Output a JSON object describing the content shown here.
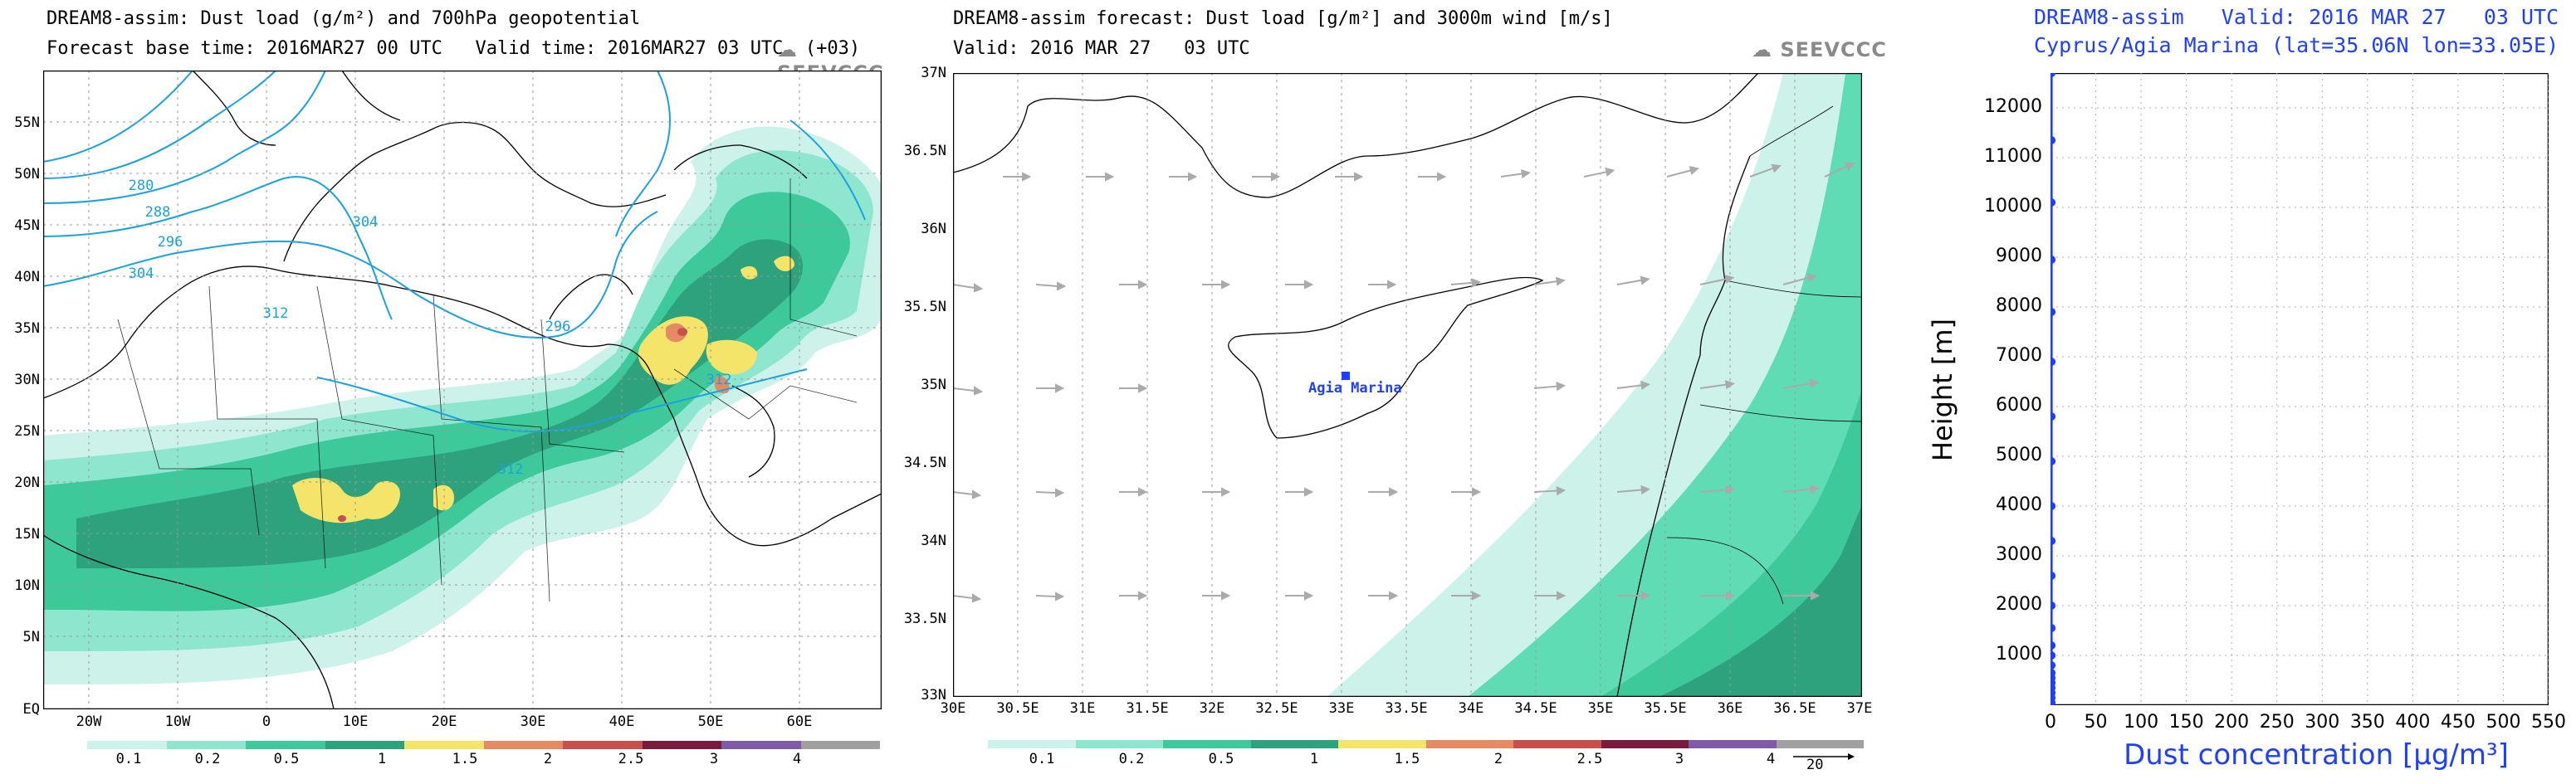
{
  "logo_text": "SEEVCCC",
  "colorbar": {
    "labels": [
      "0.1",
      "0.2",
      "0.5",
      "1",
      "1.5",
      "2",
      "2.5",
      "3",
      "4"
    ],
    "colors": [
      "#cdf2ea",
      "#8fe6cf",
      "#3ec99b",
      "#2ea27c",
      "#f5e46a",
      "#e58a63",
      "#c94e4e",
      "#7a1a3c",
      "#7f5aa8",
      "#a0a0a0"
    ]
  },
  "panel_left": {
    "title_line1": "DREAM8-assim: Dust load (g/m²) and 700hPa geopotential",
    "title_line2": "Forecast base time: 2016MAR27 00 UTC   Valid time: 2016MAR27 03 UTC  (+03)",
    "lat_labels": [
      "55N",
      "50N",
      "45N",
      "40N",
      "35N",
      "30N",
      "25N",
      "20N",
      "15N",
      "10N",
      "5N",
      "EQ"
    ],
    "lon_labels": [
      "20W",
      "10W",
      "0",
      "10E",
      "20E",
      "30E",
      "40E",
      "50E",
      "60E"
    ],
    "contour_labels": [
      "280",
      "288",
      "296",
      "304",
      "304",
      "312",
      "296",
      "312",
      "312"
    ]
  },
  "panel_middle": {
    "title_line1": "DREAM8-assim forecast: Dust load [g/m²] and 3000m wind [m/s]",
    "title_line2": "Valid: 2016 MAR 27   03 UTC",
    "lat_labels": [
      "37N",
      "36.5N",
      "36N",
      "35.5N",
      "35N",
      "34.5N",
      "34N",
      "33.5N",
      "33N"
    ],
    "lon_labels": [
      "30E",
      "30.5E",
      "31E",
      "31.5E",
      "32E",
      "32.5E",
      "33E",
      "33.5E",
      "34E",
      "34.5E",
      "35E",
      "35.5E",
      "36E",
      "36.5E",
      "37E"
    ],
    "station_label": "Agia Marina",
    "wind_ref": "20"
  },
  "panel_right": {
    "title_line1": "DREAM8-assim   Valid: 2016 MAR 27   03 UTC",
    "title_line2": "Cyprus/Agia Marina (lat=35.06N lon=33.05E)",
    "chart_data": {
      "type": "line",
      "xlabel": "Dust concentration [μg/m³]",
      "ylabel": "Height [m]",
      "xlim": [
        0,
        550
      ],
      "ylim": [
        0,
        12700
      ],
      "x_ticks": [
        "0",
        "50",
        "100",
        "150",
        "200",
        "250",
        "300",
        "350",
        "400",
        "450",
        "500",
        "550"
      ],
      "y_ticks": [
        "1000",
        "2000",
        "3000",
        "4000",
        "5000",
        "6000",
        "7000",
        "8000",
        "9000",
        "10000",
        "11000",
        "12000"
      ],
      "series": [
        {
          "heights": [
            50,
            150,
            250,
            350,
            450,
            550,
            650,
            800,
            1000,
            1200,
            1550,
            2000,
            2600,
            3300,
            4000,
            4900,
            5800,
            6900,
            7900,
            8950,
            10100,
            11350,
            12700
          ],
          "values": [
            1,
            1,
            1,
            1,
            1,
            1,
            1,
            1,
            1,
            1,
            1,
            1,
            1,
            1,
            1,
            1,
            1,
            1,
            1,
            1,
            1,
            1,
            1
          ]
        }
      ]
    }
  }
}
